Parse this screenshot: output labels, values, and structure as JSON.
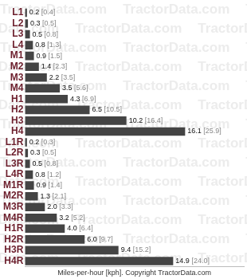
{
  "chart_data": {
    "type": "bar",
    "orientation": "horizontal",
    "categories": [
      "L1",
      "L2",
      "L3",
      "L4",
      "M1",
      "M2",
      "M3",
      "M4",
      "H1",
      "H2",
      "H3",
      "H4",
      "L1R",
      "L2R",
      "L3R",
      "L4R",
      "M1R",
      "M2R",
      "M3R",
      "M4R",
      "H1R",
      "H2R",
      "H3R",
      "H4R"
    ],
    "values": [
      0.2,
      0.3,
      0.5,
      0.8,
      0.9,
      1.4,
      2.2,
      3.5,
      4.3,
      6.5,
      10.2,
      16.1,
      0.2,
      0.3,
      0.5,
      0.8,
      0.9,
      1.3,
      2.0,
      3.2,
      4.0,
      6.0,
      9.4,
      14.9
    ],
    "value_labels": [
      "0.2 [0.4]",
      "0.3 [0.5]",
      "0.5 [0.8]",
      "0.8 [1.3]",
      "0.9 [1.5]",
      "1.4 [2.3]",
      "2.2 [3.5]",
      "3.5 [5.6]",
      "4.3 [6.9]",
      "6.5 [10.5]",
      "10.2 [16.4]",
      "16.1 [25.9]",
      "0.2 [0.3]",
      "0.3 [0.5]",
      "0.5 [0.8]",
      "0.8 [1.2]",
      "0.9 [1.4]",
      "1.3 [2.1]",
      "2.0 [3.3]",
      "3.2 [5.2]",
      "4.0 [6.4]",
      "6.0 [9.7]",
      "9.4 [15.2]",
      "14.9 [24.0]"
    ],
    "color": "#444444",
    "xlabel": "Miles-per-hour [kph]. Copyright TractorData.com",
    "watermark": "TractorData.com",
    "xlim": [
      0,
      22
    ],
    "xticks": [],
    "grid": false,
    "data_labels": true,
    "tick_labels": "y"
  }
}
